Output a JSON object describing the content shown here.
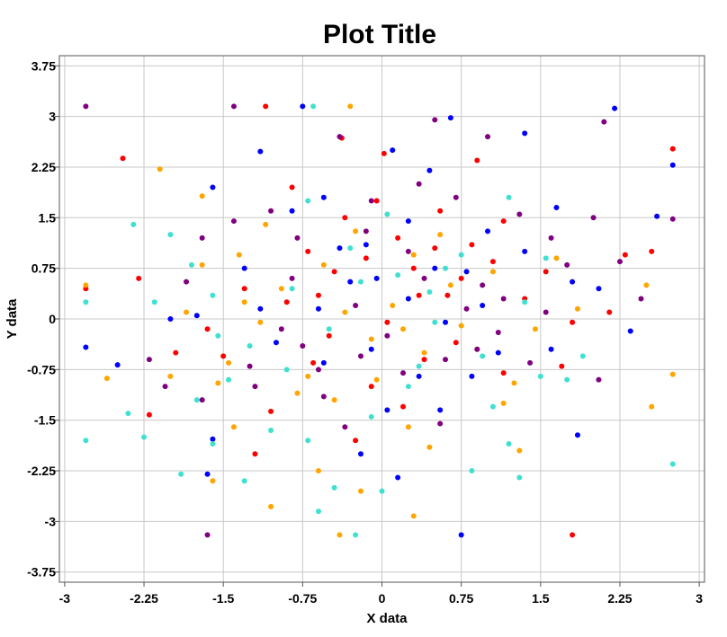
{
  "chart_data": {
    "type": "scatter",
    "title": "Plot Title",
    "xlabel": "X data",
    "ylabel": "Y data",
    "xlim": [
      -3.05,
      3.05
    ],
    "ylim": [
      -3.9,
      3.9
    ],
    "xticks": [
      -3,
      -2.25,
      -1.5,
      -0.75,
      0,
      0.75,
      1.5,
      2.25,
      3
    ],
    "yticks": [
      3.75,
      3,
      2.25,
      1.5,
      0.75,
      0,
      -0.75,
      -1.5,
      -2.25,
      -3,
      -3.75
    ],
    "xtick_labels": [
      "-3",
      "-2.25",
      "-1.5",
      "-0.75",
      "0",
      "0.75",
      "1.5",
      "2.25",
      "3"
    ],
    "ytick_labels": [
      "3.75",
      "3",
      "2.25",
      "1.5",
      "0.75",
      "0",
      "-0.75",
      "-1.5",
      "-2.25",
      "-3",
      "-3.75"
    ],
    "grid": true,
    "legend": "none",
    "series": [
      {
        "color": "#ff0000",
        "points": [
          [
            -1.1,
            3.15
          ],
          [
            -2.45,
            2.38
          ],
          [
            -0.38,
            2.68
          ],
          [
            0.02,
            2.45
          ],
          [
            0.9,
            2.35
          ],
          [
            -0.85,
            1.95
          ],
          [
            -0.35,
            1.5
          ],
          [
            0.15,
            1.2
          ],
          [
            0.5,
            1.05
          ],
          [
            1.15,
            1.45
          ],
          [
            -1.3,
            0.45
          ],
          [
            -0.6,
            0.35
          ],
          [
            0.3,
            0.75
          ],
          [
            0.75,
            0.6
          ],
          [
            1.55,
            0.7
          ],
          [
            2.3,
            0.95
          ],
          [
            2.75,
            2.52
          ],
          [
            -2.8,
            0.45
          ],
          [
            -2.3,
            0.6
          ],
          [
            -1.5,
            -0.55
          ],
          [
            -0.5,
            -0.25
          ],
          [
            0.4,
            -0.6
          ],
          [
            1.15,
            -0.8
          ],
          [
            1.8,
            -0.05
          ],
          [
            -2.2,
            -1.42
          ],
          [
            -1.05,
            -1.37
          ],
          [
            -0.1,
            -1.0
          ],
          [
            0.7,
            -0.35
          ],
          [
            1.7,
            -0.7
          ],
          [
            -0.25,
            -1.8
          ],
          [
            -1.2,
            -2.0
          ],
          [
            0.2,
            -1.3
          ],
          [
            1.8,
            -3.2
          ],
          [
            -0.7,
            1.0
          ],
          [
            0.35,
            0.35
          ],
          [
            -1.65,
            -0.15
          ],
          [
            2.15,
            0.1
          ],
          [
            0.55,
            1.6
          ],
          [
            -0.15,
            0.9
          ],
          [
            -0.45,
            0.7
          ],
          [
            0.85,
            1.1
          ],
          [
            1.35,
            0.3
          ],
          [
            -1.95,
            -0.5
          ],
          [
            2.55,
            1.0
          ],
          [
            -0.9,
            0.25
          ],
          [
            0.05,
            -0.05
          ],
          [
            -0.05,
            1.75
          ],
          [
            1.05,
            0.85
          ],
          [
            -0.65,
            -0.65
          ],
          [
            0.62,
            0.35
          ]
        ]
      },
      {
        "color": "#0000ff",
        "points": [
          [
            -0.75,
            3.15
          ],
          [
            0.65,
            2.98
          ],
          [
            2.2,
            3.12
          ],
          [
            -1.15,
            2.48
          ],
          [
            0.1,
            2.5
          ],
          [
            1.35,
            2.75
          ],
          [
            -1.6,
            1.95
          ],
          [
            -0.55,
            1.8
          ],
          [
            0.45,
            2.2
          ],
          [
            1.65,
            1.65
          ],
          [
            2.6,
            1.52
          ],
          [
            2.75,
            2.28
          ],
          [
            -2.8,
            -0.42
          ],
          [
            -2.5,
            -0.68
          ],
          [
            -1.3,
            0.75
          ],
          [
            -0.3,
            0.55
          ],
          [
            0.25,
            0.3
          ],
          [
            0.8,
            0.7
          ],
          [
            1.8,
            0.55
          ],
          [
            2.35,
            -0.18
          ],
          [
            -1.65,
            -2.3
          ],
          [
            -0.2,
            -2.0
          ],
          [
            0.75,
            -3.2
          ],
          [
            1.85,
            -1.72
          ],
          [
            -0.55,
            -0.65
          ],
          [
            0.05,
            -1.35
          ],
          [
            0.6,
            -0.05
          ],
          [
            1.1,
            -0.5
          ],
          [
            -1.0,
            -0.35
          ],
          [
            -1.75,
            0.05
          ],
          [
            -0.85,
            1.6
          ],
          [
            -0.05,
            0.6
          ],
          [
            1.0,
            1.3
          ],
          [
            0.35,
            -0.85
          ],
          [
            -0.1,
            -0.45
          ],
          [
            0.55,
            -1.35
          ],
          [
            -1.15,
            0.15
          ],
          [
            1.6,
            -0.45
          ],
          [
            2.05,
            0.45
          ],
          [
            -0.15,
            1.1
          ],
          [
            -0.4,
            1.05
          ],
          [
            0.85,
            -0.85
          ],
          [
            -1.6,
            -1.78
          ],
          [
            0.5,
            0.75
          ],
          [
            0.15,
            -2.35
          ],
          [
            -0.6,
            0.15
          ],
          [
            1.35,
            1.0
          ],
          [
            0.95,
            0.2
          ],
          [
            -2.0,
            0.0
          ],
          [
            0.25,
            1.45
          ]
        ]
      },
      {
        "color": "#ffa500",
        "points": [
          [
            -0.3,
            3.15
          ],
          [
            -2.1,
            2.22
          ],
          [
            -1.7,
            1.82
          ],
          [
            -2.6,
            -0.88
          ],
          [
            -2.8,
            0.5
          ],
          [
            -1.85,
            0.1
          ],
          [
            -1.45,
            -0.65
          ],
          [
            -1.4,
            -1.6
          ],
          [
            -1.6,
            -2.4
          ],
          [
            -1.05,
            -2.78
          ],
          [
            -0.4,
            -3.2
          ],
          [
            0.3,
            -2.92
          ],
          [
            -0.6,
            -2.25
          ],
          [
            0.25,
            -1.6
          ],
          [
            1.15,
            -1.25
          ],
          [
            1.3,
            -1.95
          ],
          [
            2.55,
            -1.3
          ],
          [
            2.75,
            -0.82
          ],
          [
            2.5,
            0.5
          ],
          [
            1.85,
            0.15
          ],
          [
            1.05,
            0.7
          ],
          [
            0.3,
            0.95
          ],
          [
            -0.55,
            0.8
          ],
          [
            -1.3,
            0.25
          ],
          [
            -2.0,
            -0.85
          ],
          [
            -0.8,
            -1.1
          ],
          [
            -0.1,
            -0.3
          ],
          [
            0.65,
            0.5
          ],
          [
            1.45,
            -0.15
          ],
          [
            -1.15,
            -0.05
          ],
          [
            -0.45,
            -1.2
          ],
          [
            0.4,
            -0.5
          ],
          [
            1.25,
            -0.95
          ],
          [
            -0.2,
            -2.55
          ],
          [
            -0.95,
            0.45
          ],
          [
            0.1,
            0.2
          ],
          [
            0.75,
            -0.1
          ],
          [
            -1.35,
            0.95
          ],
          [
            -0.25,
            1.3
          ],
          [
            0.55,
            1.25
          ],
          [
            1.65,
            0.9
          ],
          [
            -1.55,
            -0.95
          ],
          [
            -0.7,
            -0.85
          ],
          [
            0.9,
            -0.45
          ],
          [
            -0.35,
            0.1
          ],
          [
            -0.05,
            -0.9
          ],
          [
            0.45,
            -1.9
          ],
          [
            -1.1,
            1.4
          ],
          [
            -1.7,
            0.8
          ],
          [
            0.2,
            -0.15
          ]
        ]
      },
      {
        "color": "#40e0d0",
        "points": [
          [
            -0.65,
            3.15
          ],
          [
            -2.8,
            -1.8
          ],
          [
            -2.8,
            0.25
          ],
          [
            -2.35,
            1.4
          ],
          [
            -2.0,
            1.25
          ],
          [
            -1.9,
            -2.3
          ],
          [
            -1.6,
            -1.85
          ],
          [
            -1.3,
            -2.4
          ],
          [
            -0.6,
            -2.85
          ],
          [
            -0.25,
            -3.2
          ],
          [
            0.0,
            -2.55
          ],
          [
            0.85,
            -2.25
          ],
          [
            1.2,
            -1.85
          ],
          [
            1.3,
            -2.35
          ],
          [
            2.75,
            -2.15
          ],
          [
            1.75,
            -0.9
          ],
          [
            1.55,
            0.9
          ],
          [
            1.2,
            1.8
          ],
          [
            0.6,
            0.75
          ],
          [
            -0.1,
            -1.45
          ],
          [
            -0.9,
            -0.75
          ],
          [
            -1.55,
            -0.25
          ],
          [
            -2.25,
            -1.75
          ],
          [
            -2.4,
            -1.4
          ],
          [
            -1.75,
            -1.2
          ],
          [
            -1.45,
            -0.9
          ],
          [
            -0.45,
            -2.5
          ],
          [
            -0.7,
            -1.8
          ],
          [
            0.05,
            1.55
          ],
          [
            -0.7,
            1.75
          ],
          [
            -1.8,
            0.8
          ],
          [
            -2.15,
            0.25
          ],
          [
            0.35,
            -0.7
          ],
          [
            0.95,
            -0.55
          ],
          [
            1.5,
            -0.85
          ],
          [
            -0.2,
            0.55
          ],
          [
            0.5,
            -0.05
          ],
          [
            -1.25,
            -0.4
          ],
          [
            -0.85,
            0.45
          ],
          [
            0.15,
            0.65
          ],
          [
            0.75,
            0.95
          ],
          [
            1.35,
            0.25
          ],
          [
            -0.5,
            -0.15
          ],
          [
            0.25,
            -1.0
          ],
          [
            -1.05,
            -1.65
          ],
          [
            1.9,
            -0.55
          ],
          [
            -0.3,
            1.05
          ],
          [
            0.45,
            0.4
          ],
          [
            -1.6,
            0.35
          ],
          [
            1.05,
            -1.3
          ]
        ]
      },
      {
        "color": "#800080",
        "points": [
          [
            -2.8,
            3.15
          ],
          [
            -1.4,
            3.15
          ],
          [
            -0.4,
            2.7
          ],
          [
            0.5,
            2.95
          ],
          [
            1.0,
            2.7
          ],
          [
            2.1,
            2.92
          ],
          [
            -1.7,
            1.2
          ],
          [
            -1.05,
            1.6
          ],
          [
            -0.15,
            1.3
          ],
          [
            0.7,
            1.8
          ],
          [
            1.3,
            1.55
          ],
          [
            2.0,
            1.5
          ],
          [
            2.75,
            1.48
          ],
          [
            2.45,
            0.3
          ],
          [
            1.55,
            0.1
          ],
          [
            0.9,
            -0.45
          ],
          [
            0.2,
            -0.8
          ],
          [
            -0.55,
            -1.15
          ],
          [
            -1.25,
            -0.7
          ],
          [
            -2.05,
            -1.0
          ],
          [
            -1.65,
            -3.2
          ],
          [
            -0.95,
            -0.15
          ],
          [
            -0.2,
            -0.55
          ],
          [
            0.55,
            -1.55
          ],
          [
            1.4,
            -0.65
          ],
          [
            2.05,
            -0.9
          ],
          [
            -1.4,
            1.45
          ],
          [
            -0.85,
            0.6
          ],
          [
            -0.25,
            0.2
          ],
          [
            0.4,
            0.6
          ],
          [
            1.15,
            0.3
          ],
          [
            1.75,
            0.8
          ],
          [
            -2.2,
            -0.6
          ],
          [
            -1.7,
            -1.2
          ],
          [
            -0.75,
            -0.4
          ],
          [
            0.05,
            -0.25
          ],
          [
            0.8,
            0.15
          ],
          [
            1.6,
            1.2
          ],
          [
            -0.35,
            -1.6
          ],
          [
            -0.8,
            1.2
          ],
          [
            0.25,
            1.0
          ],
          [
            0.95,
            0.5
          ],
          [
            -1.85,
            0.55
          ],
          [
            -1.2,
            -1.0
          ],
          [
            -0.6,
            -0.75
          ],
          [
            0.6,
            -0.6
          ],
          [
            1.1,
            -0.2
          ],
          [
            2.25,
            0.85
          ],
          [
            -0.1,
            1.75
          ],
          [
            0.35,
            2.0
          ]
        ]
      }
    ]
  }
}
